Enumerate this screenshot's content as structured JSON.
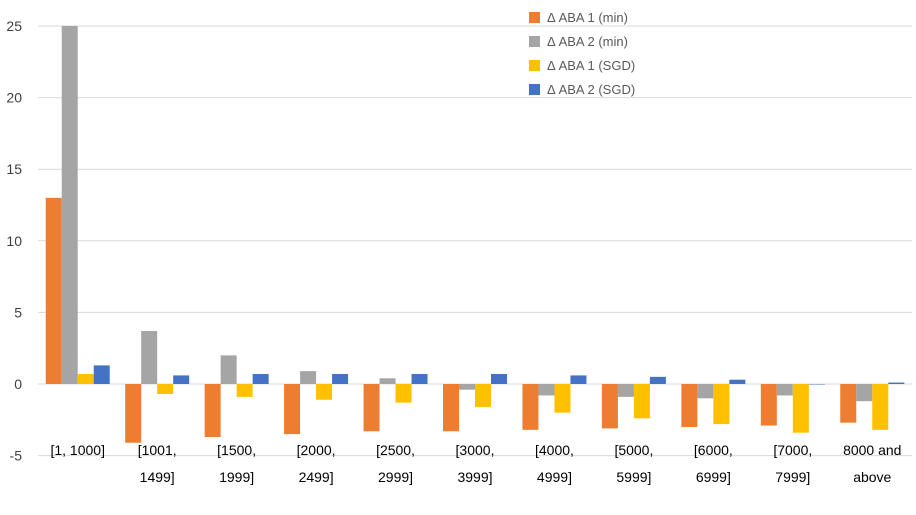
{
  "chart_data": {
    "type": "bar",
    "categories": [
      [
        "[1, 1000]"
      ],
      [
        "[1001,",
        "1499]"
      ],
      [
        "[1500,",
        "1999]"
      ],
      [
        "[2000,",
        "2499]"
      ],
      [
        "[2500,",
        "2999]"
      ],
      [
        "[3000,",
        "3999]"
      ],
      [
        "[4000,",
        "4999]"
      ],
      [
        "[5000,",
        "5999]"
      ],
      [
        "[6000,",
        "6999]"
      ],
      [
        "[7000,",
        "7999]"
      ],
      [
        "8000 and",
        "above"
      ]
    ],
    "series": [
      {
        "name": "Δ  ABA 1 (min)",
        "color": "#ED7D31",
        "values": [
          13.0,
          -4.1,
          -3.7,
          -3.5,
          -3.3,
          -3.3,
          -3.2,
          -3.1,
          -3.0,
          -2.9,
          -2.7
        ]
      },
      {
        "name": "Δ ABA 2 (min)",
        "color": "#A5A5A5",
        "values": [
          25.0,
          3.7,
          2.0,
          0.9,
          0.4,
          -0.4,
          -0.8,
          -0.9,
          -1.0,
          -0.8,
          -1.2
        ]
      },
      {
        "name": "Δ ABA 1 (SGD)",
        "color": "#FFC000",
        "values": [
          0.7,
          -0.7,
          -0.9,
          -1.1,
          -1.3,
          -1.6,
          -2.0,
          -2.4,
          -2.8,
          -3.4,
          -3.2
        ]
      },
      {
        "name": "Δ ABA 2 (SGD)",
        "color": "#4472C4",
        "values": [
          1.3,
          0.6,
          0.7,
          0.7,
          0.7,
          0.7,
          0.6,
          0.5,
          0.3,
          0.0,
          0.1
        ]
      }
    ],
    "yticks": [
      "-5",
      "0",
      "5",
      "10",
      "15",
      "20",
      "25"
    ],
    "ylim": [
      -5,
      25
    ],
    "grid": true,
    "gridColor": "#D9D9D9",
    "legend_position": "top-right"
  }
}
